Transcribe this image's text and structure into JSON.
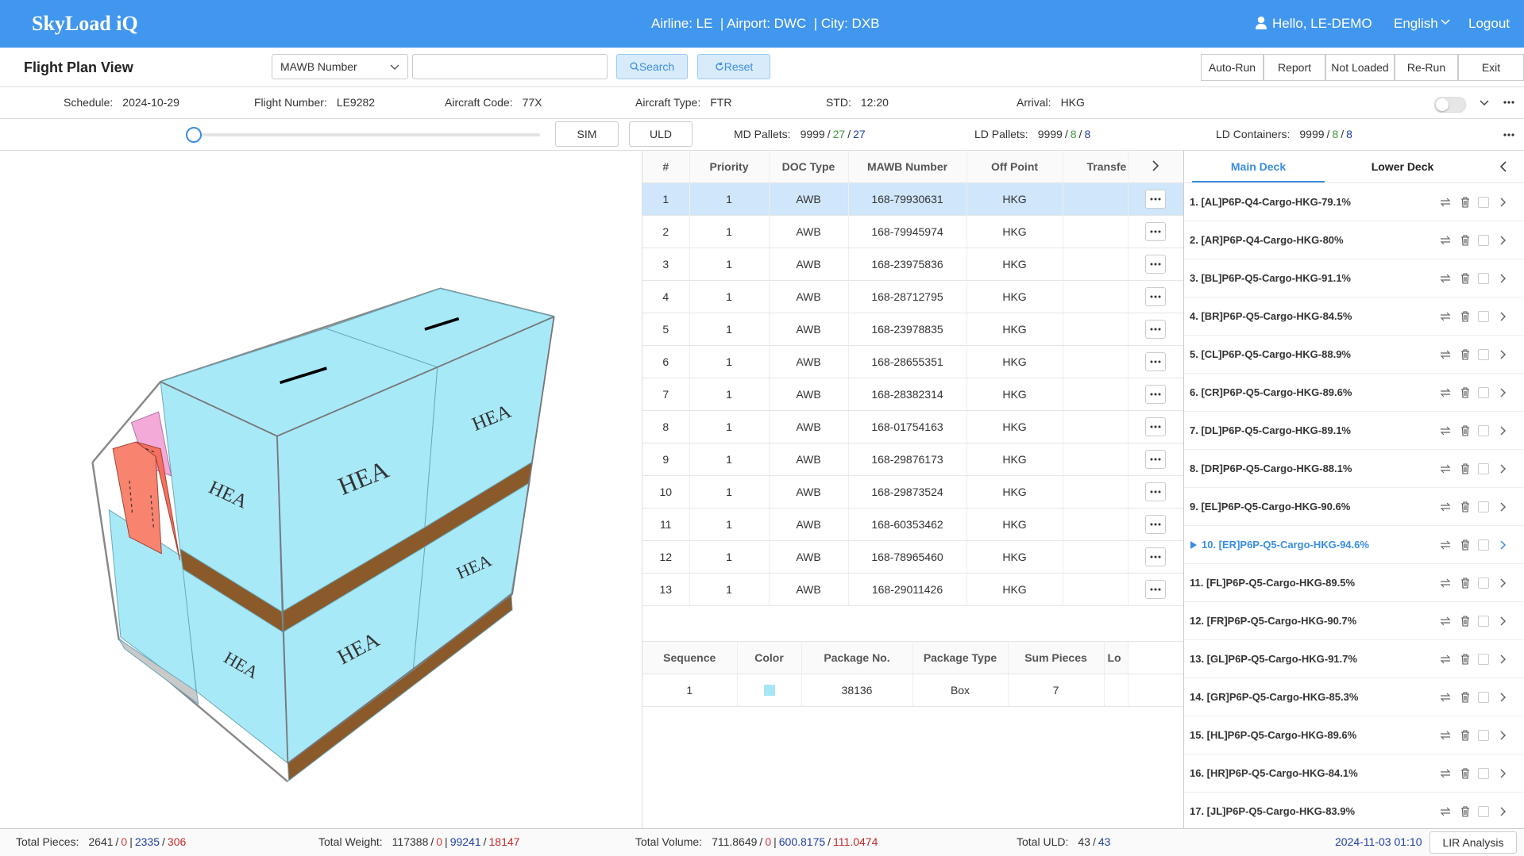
{
  "header": {
    "logo": "SkyLoad iQ",
    "context": "Airline: LE  | Airport: DWC  | City: DXB",
    "user": "Hello, LE-DEMO",
    "language": "English",
    "logout": "Logout"
  },
  "toolbar": {
    "title": "Flight Plan View",
    "search_field": "MAWB Number",
    "search_button": "Search",
    "reset_button": "Reset",
    "actions": [
      "Auto-Run",
      "Report",
      "Not Loaded",
      "Re-Run",
      "Exit"
    ]
  },
  "flight_info": [
    {
      "label": "Schedule:",
      "value": "2024-10-29"
    },
    {
      "label": "Flight Number:",
      "value": "LE9282"
    },
    {
      "label": "Aircraft Code:",
      "value": "77X"
    },
    {
      "label": "Aircraft Type:",
      "value": "FTR"
    },
    {
      "label": "STD:",
      "value": "12:20"
    },
    {
      "label": "Arrival:",
      "value": "HKG"
    }
  ],
  "controls": {
    "buttons": [
      "SIM",
      "ULD"
    ],
    "counts": [
      {
        "label": "MD Pallets:",
        "parts": [
          {
            "text": "9999"
          },
          {
            "text": "/"
          },
          {
            "text": "27",
            "color": "#3f9a3a"
          },
          {
            "text": "/"
          },
          {
            "text": "27",
            "color": "#1f3fa0"
          }
        ]
      },
      {
        "label": "LD Pallets:",
        "parts": [
          {
            "text": "9999"
          },
          {
            "text": "/"
          },
          {
            "text": "8",
            "color": "#3f9a3a"
          },
          {
            "text": "/"
          },
          {
            "text": "8",
            "color": "#1f3fa0"
          }
        ]
      },
      {
        "label": "LD Containers:",
        "parts": [
          {
            "text": "9999"
          },
          {
            "text": "/"
          },
          {
            "text": "8",
            "color": "#3f9a3a"
          },
          {
            "text": "/"
          },
          {
            "text": "8",
            "color": "#1f3fa0"
          }
        ]
      }
    ]
  },
  "view_3d": {
    "labels": [
      "HEA",
      "HEA",
      "HEA",
      "HEA",
      "HEA",
      "HEA"
    ]
  },
  "flight_table": {
    "columns": [
      "#",
      "Priority",
      "DOC Type",
      "MAWB Number",
      "Off Point",
      "Transfe"
    ],
    "rows": [
      [
        "1",
        "1",
        "AWB",
        "168-79930631",
        "HKG"
      ],
      [
        "2",
        "1",
        "AWB",
        "168-79945974",
        "HKG"
      ],
      [
        "3",
        "1",
        "AWB",
        "168-23975836",
        "HKG"
      ],
      [
        "4",
        "1",
        "AWB",
        "168-28712795",
        "HKG"
      ],
      [
        "5",
        "1",
        "AWB",
        "168-23978835",
        "HKG"
      ],
      [
        "6",
        "1",
        "AWB",
        "168-28655351",
        "HKG"
      ],
      [
        "7",
        "1",
        "AWB",
        "168-28382314",
        "HKG"
      ],
      [
        "8",
        "1",
        "AWB",
        "168-01754163",
        "HKG"
      ],
      [
        "9",
        "1",
        "AWB",
        "168-29876173",
        "HKG"
      ],
      [
        "10",
        "1",
        "AWB",
        "168-29873524",
        "HKG"
      ],
      [
        "11",
        "1",
        "AWB",
        "168-60353462",
        "HKG"
      ],
      [
        "12",
        "1",
        "AWB",
        "168-78965460",
        "HKG"
      ],
      [
        "13",
        "1",
        "AWB",
        "168-29011426",
        "HKG"
      ]
    ]
  },
  "package_table": {
    "columns": [
      "Sequence",
      "Color",
      "Package No.",
      "Package Type",
      "Sum Pieces",
      "Lo"
    ],
    "rows": [
      {
        "sequence": "1",
        "color": "#a6e6f6",
        "package_no": "38136",
        "package_type": "Box",
        "sum_pieces": "7"
      }
    ]
  },
  "deck_panel": {
    "tabs": [
      "Main Deck",
      "Lower Deck"
    ],
    "items": [
      "1. [AL]P6P-Q4-Cargo-HKG-79.1%",
      "2. [AR]P6P-Q4-Cargo-HKG-80%",
      "3. [BL]P6P-Q5-Cargo-HKG-91.1%",
      "4. [BR]P6P-Q5-Cargo-HKG-84.5%",
      "5. [CL]P6P-Q5-Cargo-HKG-88.9%",
      "6. [CR]P6P-Q5-Cargo-HKG-89.6%",
      "7. [DL]P6P-Q5-Cargo-HKG-89.1%",
      "8. [DR]P6P-Q5-Cargo-HKG-88.1%",
      "9. [EL]P6P-Q5-Cargo-HKG-90.6%",
      "10. [ER]P6P-Q5-Cargo-HKG-94.6%",
      "11. [FL]P6P-Q5-Cargo-HKG-89.5%",
      "12. [FR]P6P-Q5-Cargo-HKG-90.7%",
      "13. [GL]P6P-Q5-Cargo-HKG-91.7%",
      "14. [GR]P6P-Q5-Cargo-HKG-85.3%",
      "15. [HL]P6P-Q5-Cargo-HKG-89.6%",
      "16. [HR]P6P-Q5-Cargo-HKG-84.1%",
      "17. [JL]P6P-Q5-Cargo-HKG-83.9%"
    ]
  },
  "footer": {
    "stats": [
      {
        "label": "Total Pieces:",
        "parts": [
          {
            "text": "2641"
          },
          {
            "text": "/"
          },
          {
            "text": "0",
            "color": "#d83a3a"
          },
          {
            "text": "|"
          },
          {
            "text": "2335",
            "color": "#1f3fa0"
          },
          {
            "text": "/"
          },
          {
            "text": "306",
            "color": "#c02a2a"
          }
        ]
      },
      {
        "label": "Total Weight:",
        "parts": [
          {
            "text": "117388"
          },
          {
            "text": "/"
          },
          {
            "text": "0",
            "color": "#d83a3a"
          },
          {
            "text": "|"
          },
          {
            "text": "99241",
            "color": "#1f3fa0"
          },
          {
            "text": "/"
          },
          {
            "text": "18147",
            "color": "#c02a2a"
          }
        ]
      },
      {
        "label": "Total Volume:",
        "parts": [
          {
            "text": "711.8649"
          },
          {
            "text": "/"
          },
          {
            "text": "0",
            "color": "#d83a3a"
          },
          {
            "text": "|"
          },
          {
            "text": "600.8175",
            "color": "#1f3fa0"
          },
          {
            "text": "/"
          },
          {
            "text": "111.0474",
            "color": "#c02a2a"
          }
        ]
      },
      {
        "label": "Total ULD:",
        "parts": [
          {
            "text": "43"
          },
          {
            "text": "/"
          },
          {
            "text": "43",
            "color": "#1f3fa0"
          }
        ]
      }
    ],
    "timestamp": "2024-11-03 01:10",
    "button": "LIR Analysis"
  }
}
